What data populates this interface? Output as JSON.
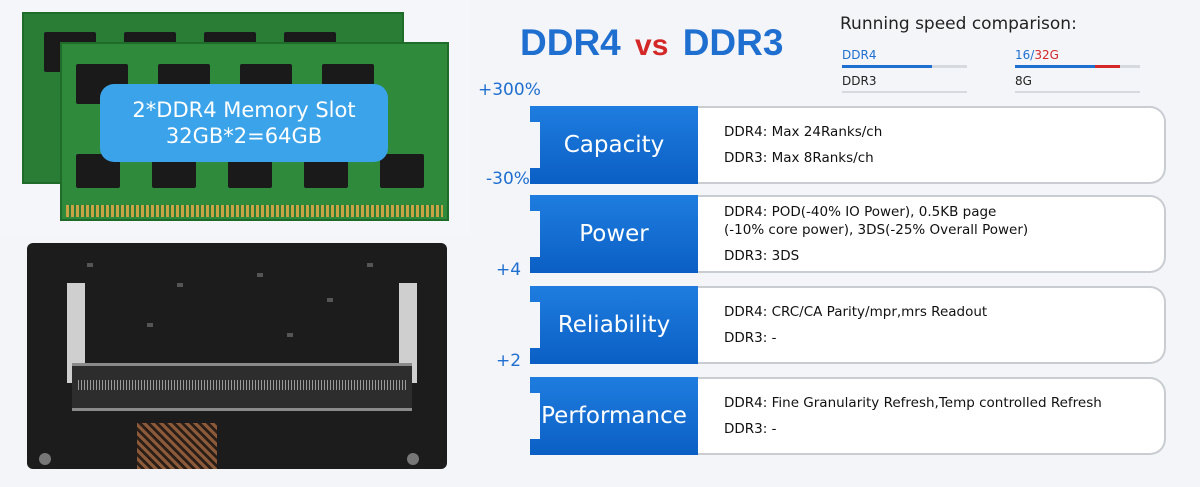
{
  "left": {
    "memory_label_line1": "2*DDR4 Memory Slot",
    "memory_label_line2": "32GB*2=64GB"
  },
  "heading": {
    "part1": "DDR4",
    "vs": "vs",
    "part2": "DDR3"
  },
  "speed": {
    "title": "Running speed comparison:",
    "type_col": {
      "top_label": "DDR4",
      "bottom_label": "DDR3",
      "fill_percent": 72
    },
    "capacity_col": {
      "top_label_a": "16/",
      "top_label_b": "32G",
      "bottom_label": "8G",
      "fill_percent": 64,
      "red_percent": 20
    }
  },
  "rows": [
    {
      "pct": "+300%",
      "category": "Capacity",
      "lines": [
        "DDR4: Max 24Ranks/ch",
        "DDR3: Max 8Ranks/ch"
      ]
    },
    {
      "pct": "-30%",
      "category": "Power",
      "lines": [
        "DDR4: POD(-40% IO Power), 0.5KB page",
        "(-10% core power), 3DS(-25% Overall Power)",
        "DDR3: 3DS"
      ]
    },
    {
      "pct": "+4",
      "category": "Reliability",
      "lines": [
        "DDR4: CRC/CA Parity/mpr,mrs Readout",
        "DDR3: -"
      ]
    },
    {
      "pct": "+2",
      "category": "Performance",
      "lines": [
        "DDR4: Fine Granularity Refresh,Temp controlled Refresh",
        "DDR3: -"
      ]
    }
  ],
  "colors": {
    "accent": "#1f6fd0",
    "highlight": "#d42727",
    "label_bg": "#3aa3ea"
  }
}
